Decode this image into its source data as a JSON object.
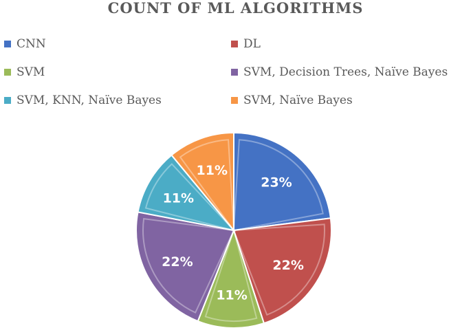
{
  "chart_data": {
    "type": "pie",
    "title": "COUNT OF ML ALGORITHMS",
    "legend_position": "top",
    "categories": [
      "CNN",
      "DL",
      "SVM",
      "SVM, Decision Trees, Naïve Bayes",
      "SVM, KNN, Naïve Bayes",
      "SVM, Naïve Bayes"
    ],
    "values": [
      23,
      22,
      11,
      22,
      11,
      11
    ],
    "labels": [
      "23%",
      "22%",
      "11%",
      "22%",
      "11%",
      "11%"
    ],
    "colors": [
      "#4472C4",
      "#C0504D",
      "#9BBB59",
      "#8064A2",
      "#4BACC6",
      "#F79646"
    ]
  }
}
